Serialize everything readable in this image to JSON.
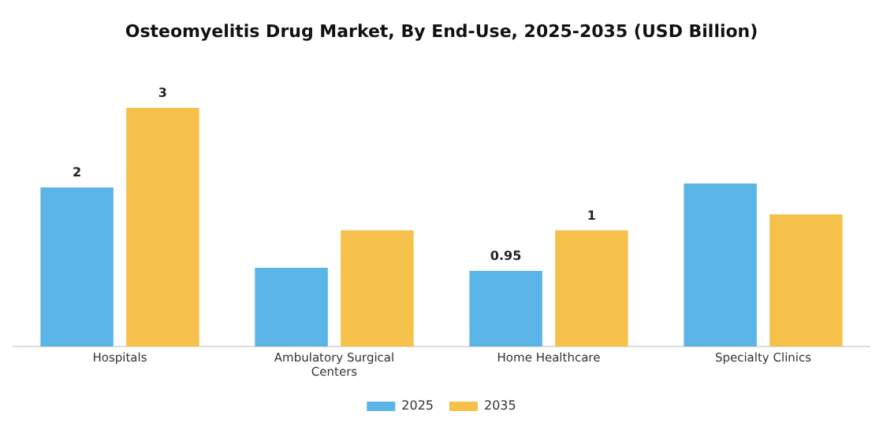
{
  "chart_data": {
    "type": "bar",
    "title": "Osteomyelitis Drug Market, By End-Use, 2025-2035 (USD Billion)",
    "categories": [
      "Hospitals",
      "Ambulatory Surgical Centers",
      "Home Healthcare",
      "Specialty Clinics"
    ],
    "series": [
      {
        "name": "2025",
        "color": "#5ab4e5",
        "values": [
          2,
          0.99,
          0.95,
          2.05
        ],
        "value_labels": [
          "2",
          null,
          "0.95",
          null
        ]
      },
      {
        "name": "2035",
        "color": "#f6c14b",
        "values": [
          3,
          1.46,
          1.46,
          1.66
        ],
        "value_labels": [
          "3",
          null,
          "1",
          null
        ]
      }
    ],
    "legend": "bottom",
    "grid": false
  }
}
